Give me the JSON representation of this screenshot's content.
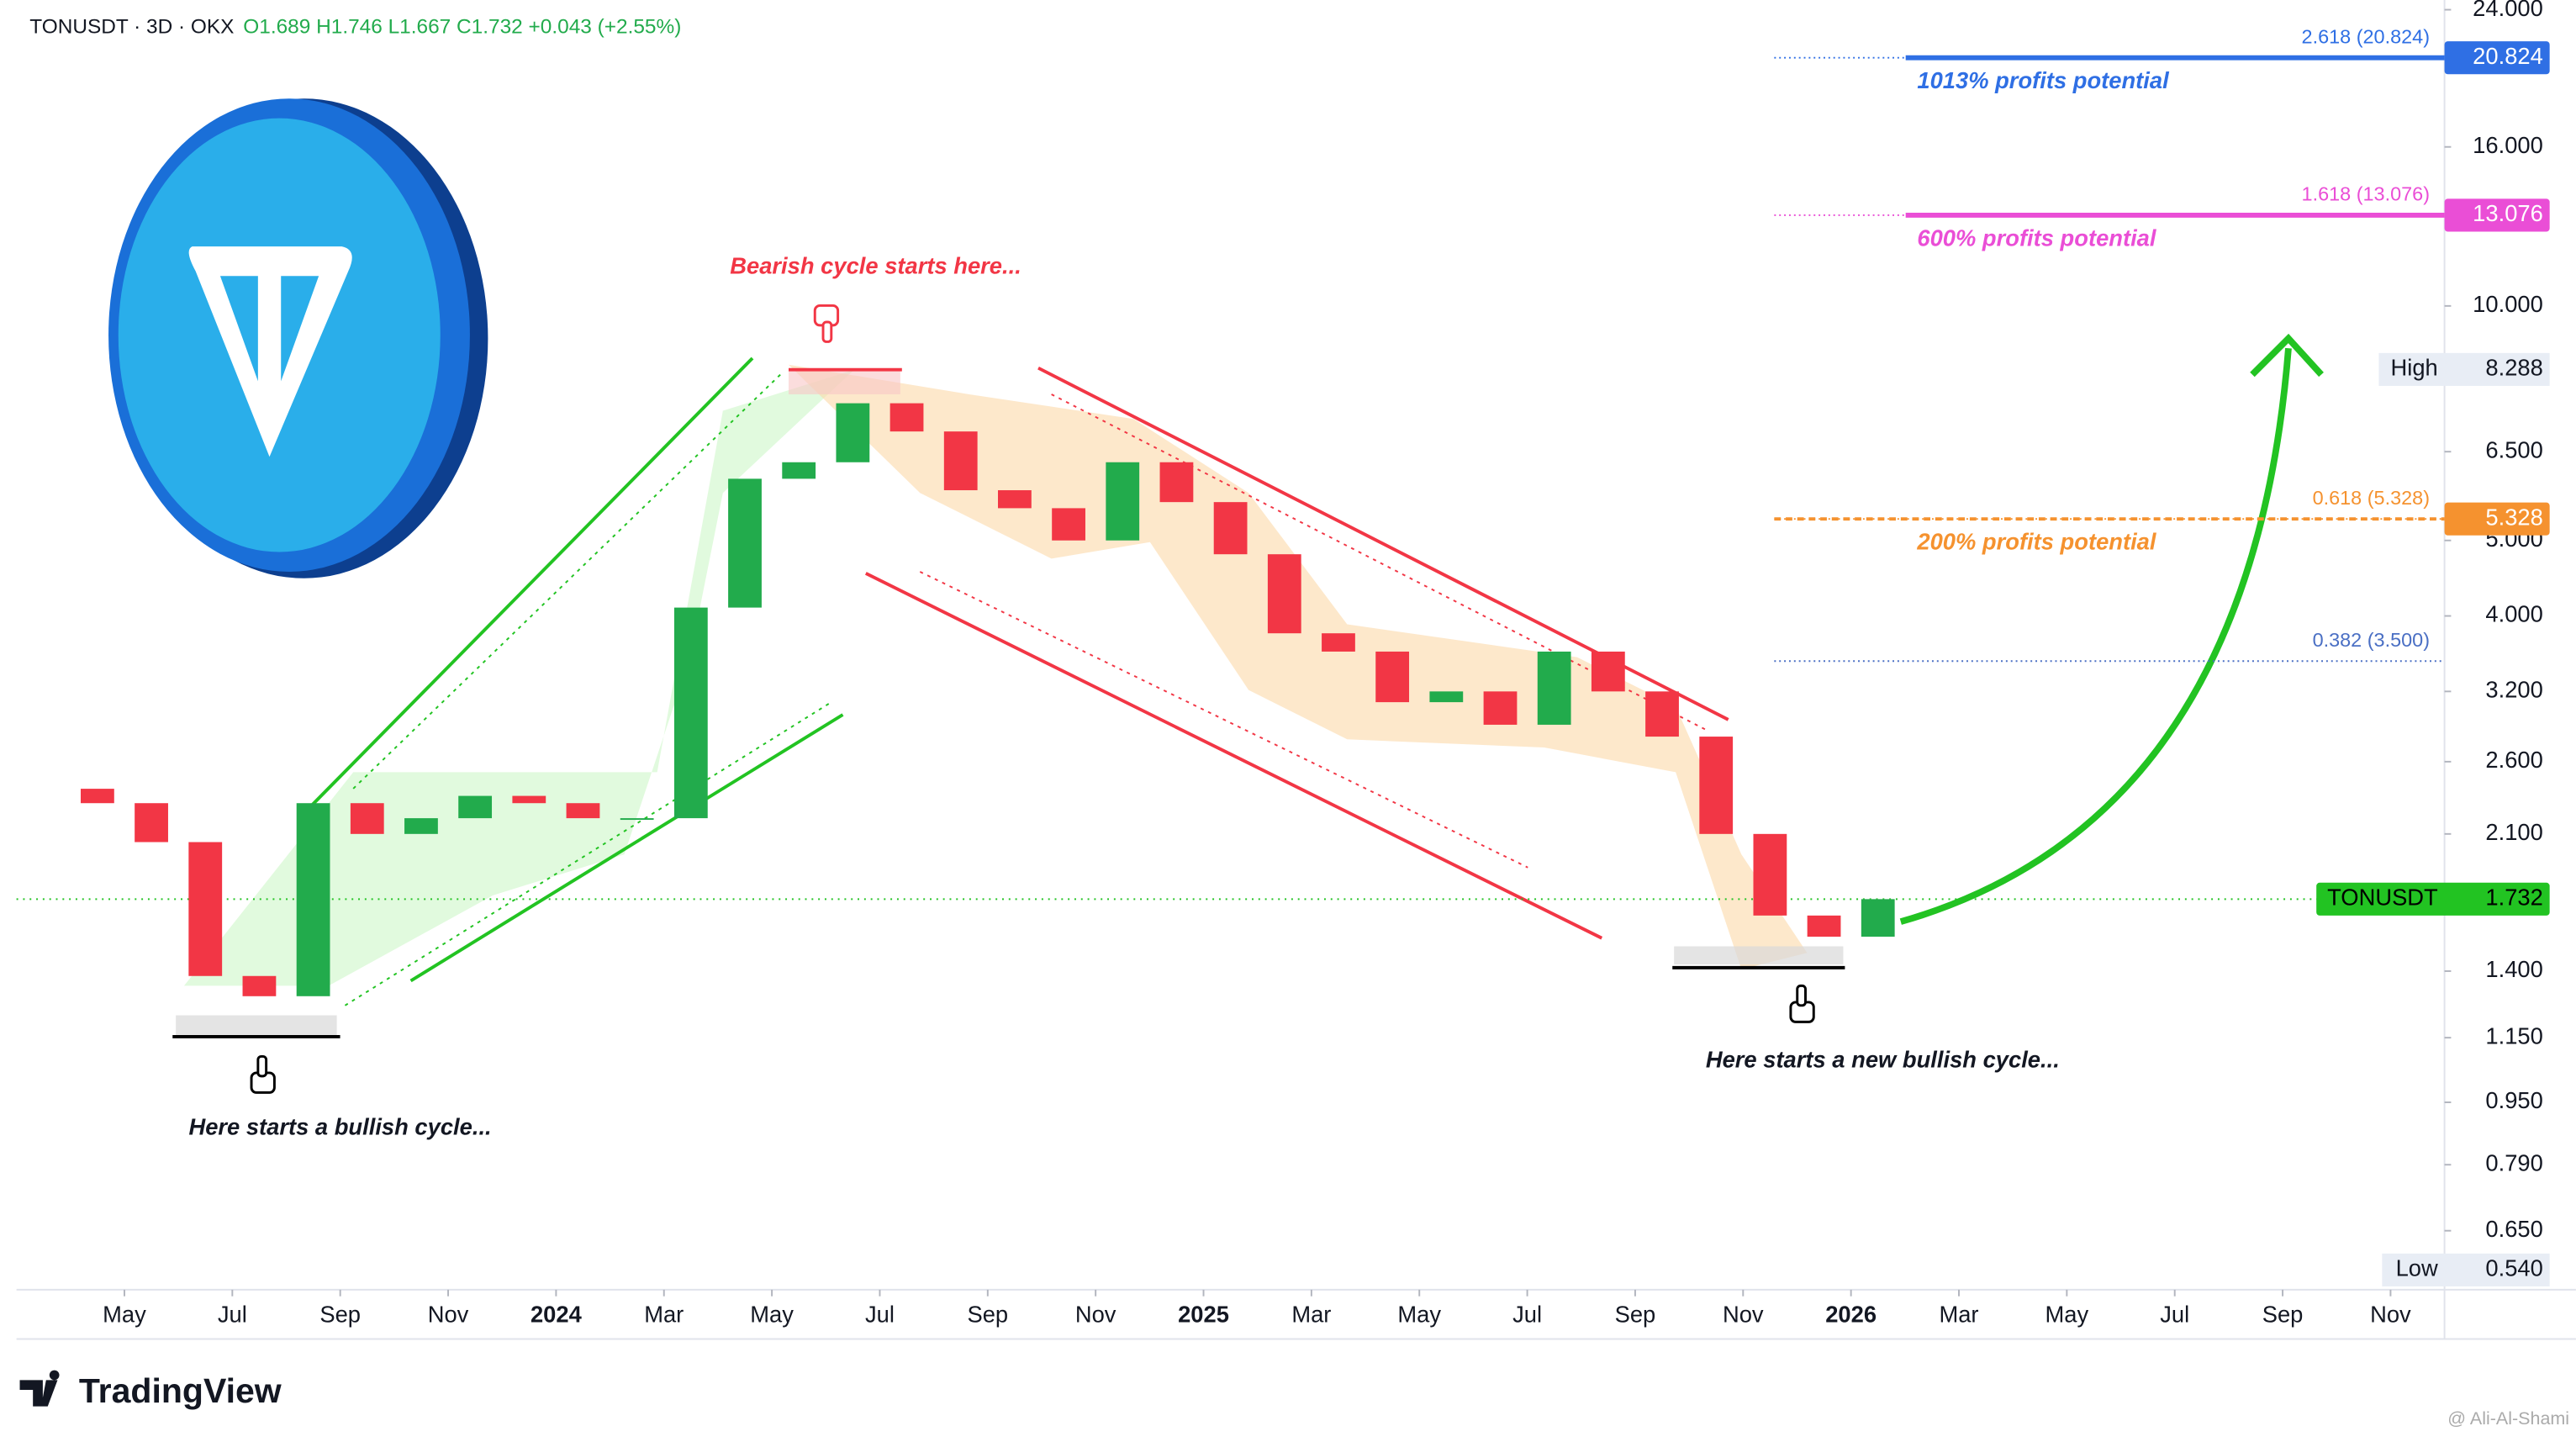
{
  "header": {
    "symbol": "TONUSDT · 3D · OKX",
    "quote": "O1.689 H1.746 L1.667 C1.732 +0.043 (+2.55%)"
  },
  "branding": {
    "logo": "TradingView",
    "watermark": "@ Ali-Al-Shami"
  },
  "chart_data": {
    "type": "candlestick",
    "log_scale": true,
    "x": [
      "2023-04",
      "2023-05",
      "2023-06",
      "2023-07",
      "2023-08",
      "2023-09",
      "2023-10",
      "2023-11",
      "2023-12",
      "2024-01",
      "2024-02",
      "2024-03",
      "2024-04",
      "2024-05",
      "2024-06",
      "2024-07",
      "2024-08",
      "2024-09",
      "2024-10",
      "2024-11",
      "2024-12",
      "2025-01",
      "2025-02",
      "2025-03",
      "2025-04",
      "2025-05",
      "2025-06",
      "2025-07",
      "2025-08",
      "2025-09",
      "2025-10",
      "2025-11",
      "2025-12",
      "2026-01"
    ],
    "open": [
      2.4,
      2.3,
      2.05,
      1.38,
      1.3,
      2.3,
      2.1,
      2.2,
      2.35,
      2.3,
      2.2,
      2.2,
      4.1,
      6.0,
      6.3,
      7.5,
      6.9,
      5.8,
      5.5,
      5.0,
      6.3,
      5.6,
      4.8,
      3.8,
      3.6,
      3.1,
      3.2,
      2.9,
      3.6,
      3.2,
      2.8,
      2.1,
      1.65,
      1.55
    ],
    "high": {
      "label": "High",
      "value": 8.288
    },
    "low": {
      "label": "Low",
      "value": 0.54,
      "value_label": "0.540"
    },
    "close": [
      2.3,
      2.05,
      1.38,
      1.3,
      2.3,
      2.1,
      2.2,
      2.35,
      2.3,
      2.2,
      2.2,
      4.1,
      6.0,
      6.3,
      7.5,
      6.9,
      5.8,
      5.5,
      5.0,
      6.3,
      5.6,
      4.8,
      3.8,
      3.6,
      3.1,
      3.2,
      2.9,
      3.6,
      3.2,
      2.8,
      2.1,
      1.65,
      1.55,
      1.732
    ],
    "up_color": "#22ab4c",
    "down_color": "#f23645",
    "xlim": [
      "2023-03",
      "2026-12"
    ],
    "xticks": [
      {
        "value": "2023-05",
        "label": "May"
      },
      {
        "value": "2023-07",
        "label": "Jul"
      },
      {
        "value": "2023-09",
        "label": "Sep"
      },
      {
        "value": "2023-11",
        "label": "Nov"
      },
      {
        "value": "2024-01",
        "label": "2024"
      },
      {
        "value": "2024-03",
        "label": "Mar"
      },
      {
        "value": "2024-05",
        "label": "May"
      },
      {
        "value": "2024-07",
        "label": "Jul"
      },
      {
        "value": "2024-09",
        "label": "Sep"
      },
      {
        "value": "2024-11",
        "label": "Nov"
      },
      {
        "value": "2025-01",
        "label": "2025"
      },
      {
        "value": "2025-03",
        "label": "Mar"
      },
      {
        "value": "2025-05",
        "label": "May"
      },
      {
        "value": "2025-07",
        "label": "Jul"
      },
      {
        "value": "2025-09",
        "label": "Sep"
      },
      {
        "value": "2025-11",
        "label": "Nov"
      },
      {
        "value": "2026-01",
        "label": "2026"
      },
      {
        "value": "2026-03",
        "label": "Mar"
      },
      {
        "value": "2026-05",
        "label": "May"
      },
      {
        "value": "2026-07",
        "label": "Jul"
      },
      {
        "value": "2026-09",
        "label": "Sep"
      },
      {
        "value": "2026-11",
        "label": "Nov"
      }
    ],
    "ylim": [
      0.546,
      24.7
    ],
    "yticks": [
      {
        "value": 24,
        "label": "24.000"
      },
      {
        "value": 16,
        "label": "16.000"
      },
      {
        "value": 10,
        "label": "10.000"
      },
      {
        "value": 6.5,
        "label": "6.500"
      },
      {
        "value": 5,
        "label": "5.000"
      },
      {
        "value": 4,
        "label": "4.000"
      },
      {
        "value": 3.2,
        "label": "3.200"
      },
      {
        "value": 2.6,
        "label": "2.600"
      },
      {
        "value": 2.1,
        "label": "2.100"
      },
      {
        "value": 1.4,
        "label": "1.400"
      },
      {
        "value": 1.15,
        "label": "1.150"
      },
      {
        "value": 0.95,
        "label": "0.950"
      },
      {
        "value": 0.79,
        "label": "0.790"
      },
      {
        "value": 0.65,
        "label": "0.650"
      }
    ],
    "levels": [
      {
        "label": "2.618 (20.824)",
        "value": 20.824,
        "note": "1013% profits potential",
        "color": "#2f6fe4",
        "line_style": "solid",
        "tag": true
      },
      {
        "label": "1.618 (13.076)",
        "value": 13.076,
        "note": "600% profits potential",
        "color": "#ea4ed6",
        "line_style": "solid",
        "tag": true
      },
      {
        "label": "0.618 (5.328)",
        "value": 5.328,
        "note": "200% profits potential",
        "color": "#f5922f",
        "line_style": "dashed",
        "tag": true
      },
      {
        "label": "0.382 (3.500)",
        "value": 3.5,
        "color": "#4a6fc4",
        "line_style": "dotted",
        "tag": false
      }
    ],
    "last": {
      "label": "TONUSDT",
      "value": 1.732,
      "color": "#22c322"
    },
    "annotations": [
      "Bearish cycle starts here...",
      "Here starts a bullish cycle...",
      "Here starts a new bullish cycle..."
    ]
  }
}
